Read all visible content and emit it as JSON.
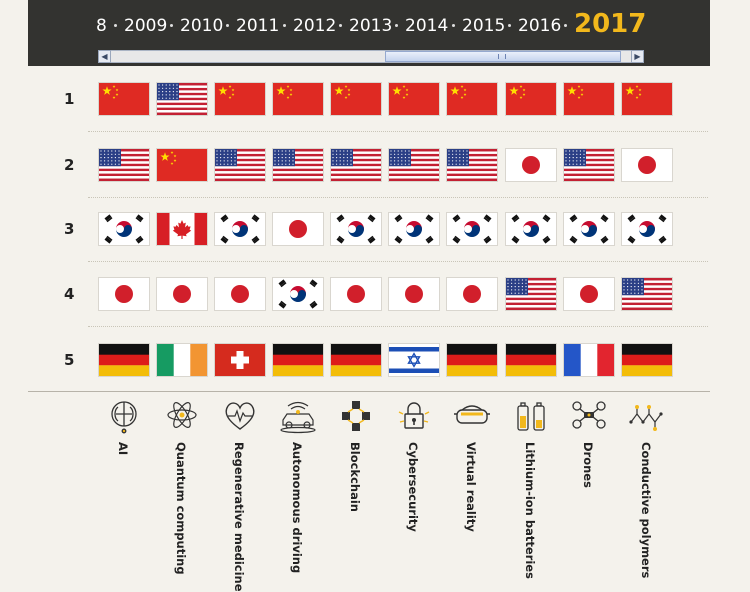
{
  "years": [
    "8",
    "2009",
    "2010",
    "2011",
    "2012",
    "2013",
    "2014",
    "2015",
    "2016",
    "2017"
  ],
  "active_year": "2017",
  "ranks": [
    "1",
    "2",
    "3",
    "4",
    "5"
  ],
  "technologies": [
    {
      "label": "AI",
      "icon": "ai-brain-icon",
      "flags": [
        "china",
        "usa",
        "korea",
        "japan",
        "germany"
      ]
    },
    {
      "label": "Quantum computing",
      "icon": "quantum-atom-icon",
      "flags": [
        "usa",
        "china",
        "canada",
        "japan",
        "ireland"
      ]
    },
    {
      "label": "Regenerative medicine",
      "icon": "heart-pulse-icon",
      "flags": [
        "china",
        "usa",
        "korea",
        "japan",
        "switzerland"
      ]
    },
    {
      "label": "Autonomous driving",
      "icon": "autonomous-car-icon",
      "flags": [
        "china",
        "usa",
        "japan",
        "korea",
        "germany"
      ]
    },
    {
      "label": "Blockchain",
      "icon": "blockchain-cubes-icon",
      "flags": [
        "china",
        "usa",
        "korea",
        "japan",
        "germany"
      ]
    },
    {
      "label": "Cybersecurity",
      "icon": "padlock-icon",
      "flags": [
        "china",
        "usa",
        "korea",
        "japan",
        "israel"
      ]
    },
    {
      "label": "Virtual reality",
      "icon": "vr-headset-icon",
      "flags": [
        "china",
        "usa",
        "korea",
        "japan",
        "germany"
      ]
    },
    {
      "label": "Lithium-ion batteries",
      "icon": "battery-icon",
      "flags": [
        "china",
        "japan",
        "korea",
        "usa",
        "germany"
      ]
    },
    {
      "label": "Drones",
      "icon": "drone-icon",
      "flags": [
        "china",
        "usa",
        "korea",
        "japan",
        "france"
      ]
    },
    {
      "label": "Conductive polymers",
      "icon": "polymer-chain-icon",
      "flags": [
        "china",
        "japan",
        "korea",
        "usa",
        "germany"
      ]
    }
  ],
  "colors": {
    "topbar": "#333330",
    "active_year": "#f2b81c",
    "background": "#f4f2ec"
  }
}
